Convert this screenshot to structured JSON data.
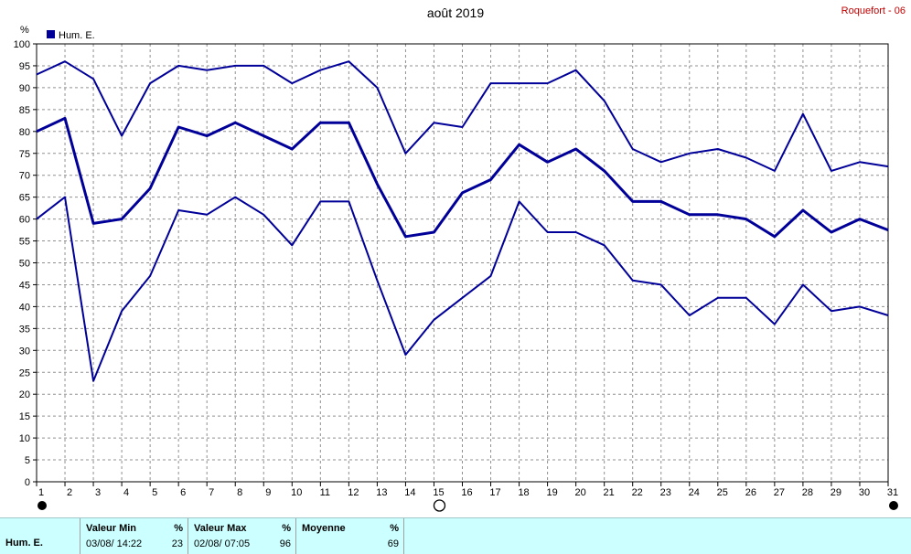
{
  "title": "août 2019",
  "station": "Roquefort - 06",
  "legend": {
    "label": "Hum. E.",
    "color": "#000099"
  },
  "chart_data": {
    "type": "line",
    "title": "août 2019",
    "ylabel": "%",
    "ylim": [
      0,
      100
    ],
    "y_ticks": [
      0,
      5,
      10,
      15,
      20,
      25,
      30,
      35,
      40,
      45,
      50,
      55,
      60,
      65,
      70,
      75,
      80,
      85,
      90,
      95,
      100
    ],
    "x": [
      1,
      2,
      3,
      4,
      5,
      6,
      7,
      8,
      9,
      10,
      11,
      12,
      13,
      14,
      15,
      16,
      17,
      18,
      19,
      20,
      21,
      22,
      23,
      24,
      25,
      26,
      27,
      28,
      29,
      30,
      31
    ],
    "grid": true,
    "legend_position": "top-left",
    "series": [
      {
        "role": "max",
        "values": [
          93,
          96,
          92,
          79,
          91,
          95,
          94,
          95,
          95,
          91,
          94,
          96,
          90,
          75,
          82,
          81,
          91,
          91,
          91,
          94,
          87,
          76,
          73,
          75,
          76,
          74,
          71,
          84,
          71,
          73,
          72
        ]
      },
      {
        "role": "mean",
        "values": [
          80,
          83,
          59,
          60,
          67,
          81,
          79,
          82,
          79,
          76,
          82,
          82,
          68,
          56,
          57,
          66,
          69,
          77,
          73,
          76,
          71,
          64,
          64,
          61,
          61,
          60,
          56,
          62,
          57,
          60,
          57.5
        ]
      },
      {
        "role": "min",
        "values": [
          60,
          65,
          23,
          39,
          47,
          62,
          61,
          65,
          61,
          54,
          64,
          64,
          46,
          29,
          37,
          42,
          47,
          64,
          57,
          57,
          54,
          46,
          45,
          38,
          42,
          42,
          36,
          45,
          39,
          40,
          38
        ]
      }
    ],
    "moon_phases": [
      {
        "day": 1,
        "phase": "new"
      },
      {
        "day": 15,
        "phase": "full"
      },
      {
        "day": 31,
        "phase": "new"
      }
    ]
  },
  "footer": {
    "series_label": "Hum. E.",
    "min": {
      "header": "Valeur Min",
      "unit": "%",
      "date": "03/08/  14:22",
      "value": "23"
    },
    "max": {
      "header": "Valeur Max",
      "unit": "%",
      "date": "02/08/  07:05",
      "value": "96"
    },
    "avg": {
      "header": "Moyenne",
      "unit": "%",
      "value": "69"
    }
  }
}
